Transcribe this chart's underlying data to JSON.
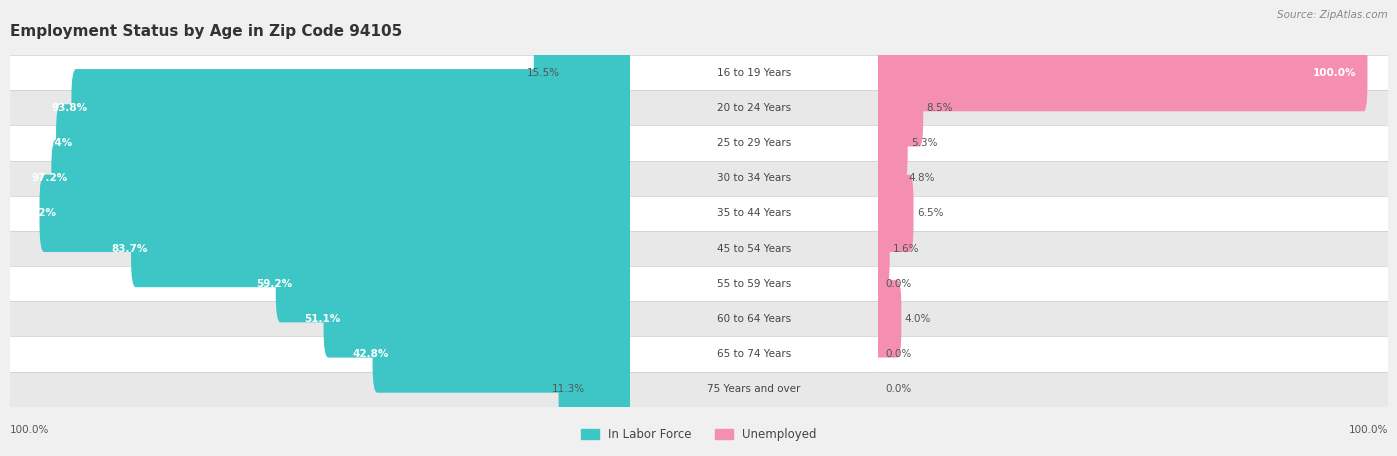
{
  "title": "Employment Status by Age in Zip Code 94105",
  "source": "Source: ZipAtlas.com",
  "categories": [
    "16 to 19 Years",
    "20 to 24 Years",
    "25 to 29 Years",
    "30 to 34 Years",
    "35 to 44 Years",
    "45 to 54 Years",
    "55 to 59 Years",
    "60 to 64 Years",
    "65 to 74 Years",
    "75 Years and over"
  ],
  "labor_force": [
    15.5,
    93.8,
    96.4,
    97.2,
    99.2,
    83.7,
    59.2,
    51.1,
    42.8,
    11.3
  ],
  "unemployed": [
    100.0,
    8.5,
    5.3,
    4.8,
    6.5,
    1.6,
    0.0,
    4.0,
    0.0,
    0.0
  ],
  "labor_force_color": "#3ec6c6",
  "unemployed_color": "#f48fb1",
  "background_color": "#f0f0f0",
  "row_bg_light": "#ffffff",
  "row_bg_dark": "#e8e8e8",
  "title_color": "#333333",
  "value_label_inside_color": "#ffffff",
  "value_label_outside_color": "#555555",
  "center_label_color": "#444444",
  "legend_label_color": "#444444",
  "source_color": "#888888",
  "bar_height": 0.6,
  "lf_threshold_inside": 30,
  "ue_threshold_inside": 30
}
